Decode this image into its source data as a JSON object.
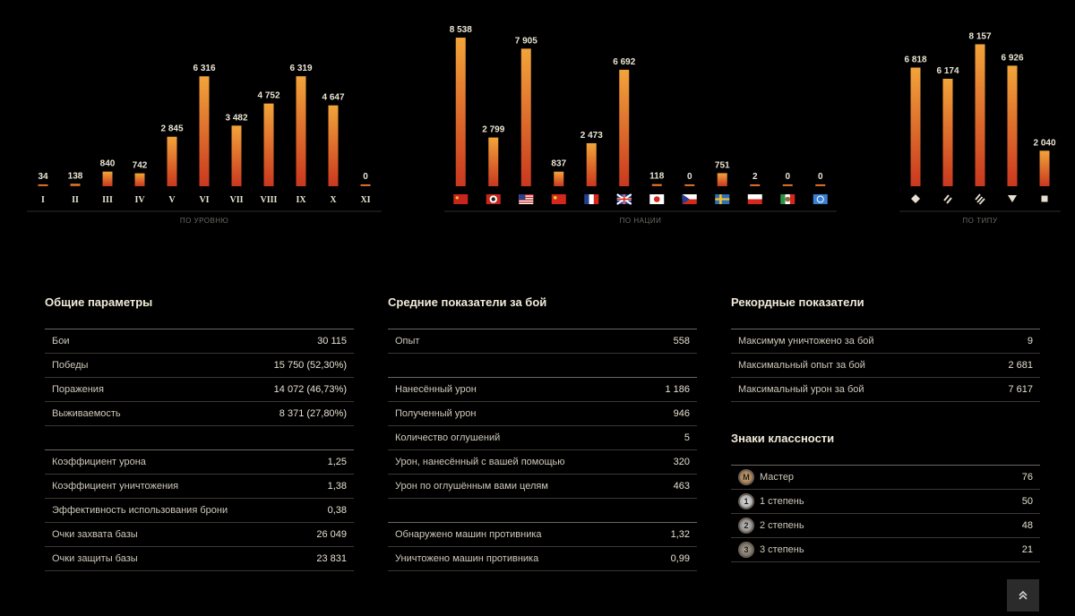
{
  "chart_data": [
    {
      "type": "bar",
      "title": "",
      "caption": "по уровню",
      "categories": [
        "I",
        "II",
        "III",
        "IV",
        "V",
        "VI",
        "VII",
        "VIII",
        "IX",
        "X",
        "XI"
      ],
      "values": [
        34,
        138,
        840,
        742,
        2845,
        6316,
        3482,
        4752,
        6319,
        4647,
        0
      ],
      "value_labels": [
        "34",
        "138",
        "840",
        "742",
        "2 845",
        "6 316",
        "3 482",
        "4 752",
        "6 319",
        "4 647",
        "0"
      ],
      "ylim": [
        0,
        8540
      ]
    },
    {
      "type": "bar",
      "title": "",
      "caption": "по нации",
      "categories": [
        "ussr",
        "germany",
        "usa",
        "china",
        "france",
        "uk",
        "japan",
        "czech",
        "sweden",
        "poland",
        "italy",
        "intunion"
      ],
      "values": [
        8538,
        2799,
        7905,
        837,
        2473,
        6692,
        118,
        0,
        751,
        2,
        0,
        0
      ],
      "value_labels": [
        "8 538",
        "2 799",
        "7 905",
        "837",
        "2 473",
        "6 692",
        "118",
        "0",
        "751",
        "2",
        "0",
        "0"
      ],
      "ylim": [
        0,
        8540
      ]
    },
    {
      "type": "bar",
      "title": "",
      "caption": "по типу",
      "categories": [
        "light",
        "medium",
        "heavy",
        "td",
        "spg"
      ],
      "values": [
        6818,
        6174,
        8157,
        6926,
        2040
      ],
      "value_labels": [
        "6 818",
        "6 174",
        "8 157",
        "6 926",
        "2 040"
      ],
      "ylim": [
        0,
        8540
      ]
    }
  ],
  "colors": {
    "bar_top": "#f2a43a",
    "bar_bottom": "#c9381f"
  },
  "general": {
    "title": "Общие параметры",
    "rows": [
      {
        "label": "Бои",
        "value": "30 115"
      },
      {
        "label": "Победы",
        "value": "15 750 (52,30%)"
      },
      {
        "label": "Поражения",
        "value": "14 072 (46,73%)"
      },
      {
        "label": "Выживаемость",
        "value": "8 371 (27,80%)"
      },
      {
        "label": "Коэффициент урона",
        "value": "1,25"
      },
      {
        "label": "Коэффициент уничтожения",
        "value": "1,38"
      },
      {
        "label": "Эффективность использования брони",
        "value": "0,38"
      },
      {
        "label": "Очки захвата базы",
        "value": "26 049"
      },
      {
        "label": "Очки защиты базы",
        "value": "23 831"
      }
    ]
  },
  "average": {
    "title": "Средние показатели за бой",
    "rows": [
      {
        "label": "Опыт",
        "value": "558"
      },
      {
        "label": "Нанесённый урон",
        "value": "1 186"
      },
      {
        "label": "Полученный урон",
        "value": "946"
      },
      {
        "label": "Количество оглушений",
        "value": "5"
      },
      {
        "label": "Урон, нанесённый с вашей помощью",
        "value": "320"
      },
      {
        "label": "Урон по оглушённым вами целям",
        "value": "463"
      },
      {
        "label": "Обнаружено машин противника",
        "value": "1,32"
      },
      {
        "label": "Уничтожено машин противника",
        "value": "0,99"
      }
    ]
  },
  "records": {
    "title": "Рекордные показатели",
    "rows": [
      {
        "label": "Максимум уничтожено за бой",
        "value": "9"
      },
      {
        "label": "Максимальный опыт за бой",
        "value": "2 681"
      },
      {
        "label": "Максимальный урон за бой",
        "value": "7 617"
      }
    ]
  },
  "badges": {
    "title": "Знаки классности",
    "rows": [
      {
        "label": "Мастер",
        "value": "76",
        "icon_text": "M"
      },
      {
        "label": "1 степень",
        "value": "50",
        "icon_text": "1"
      },
      {
        "label": "2 степень",
        "value": "48",
        "icon_text": "2"
      },
      {
        "label": "3 степень",
        "value": "21",
        "icon_text": "3"
      }
    ]
  },
  "scroll_top_icon": "double-chevron-up-icon"
}
